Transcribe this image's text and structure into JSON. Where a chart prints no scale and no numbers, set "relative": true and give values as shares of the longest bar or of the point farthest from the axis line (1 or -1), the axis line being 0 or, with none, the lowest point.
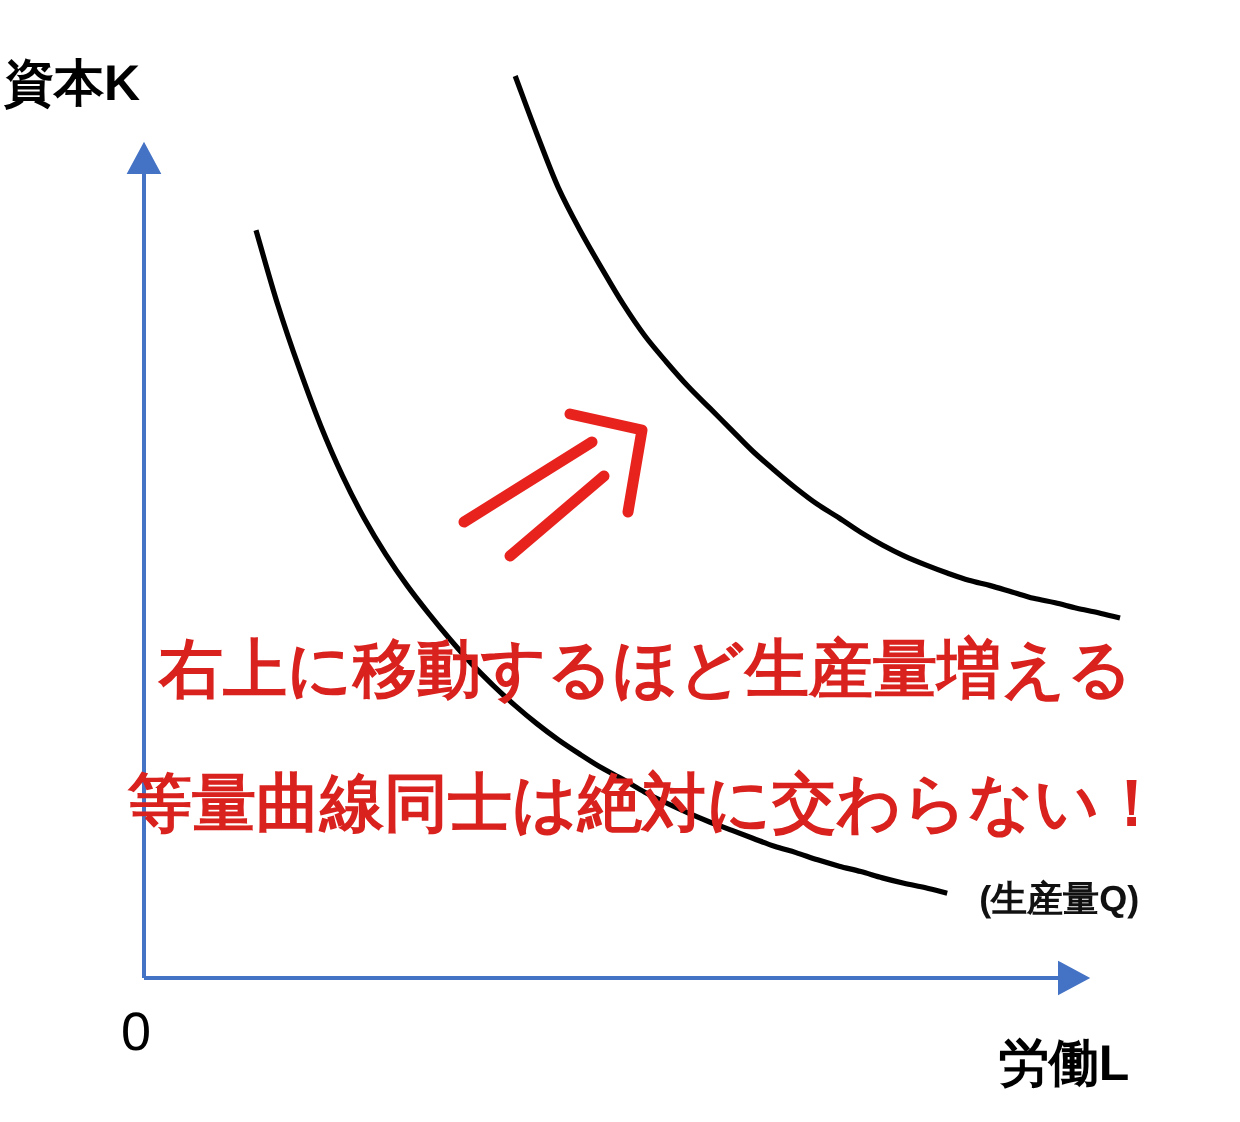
{
  "chart_data": {
    "type": "line",
    "relative": true,
    "xlabel": "労働L",
    "ylabel": "資本K",
    "line_style": "solid",
    "categories": [
      null,
      null,
      null,
      null,
      null,
      null,
      null,
      null,
      null,
      null,
      null,
      null,
      null,
      null,
      null,
      null,
      null,
      null,
      null,
      null,
      null,
      null,
      null,
      null,
      null,
      null,
      null,
      null,
      null,
      null,
      null,
      null,
      null,
      null,
      null,
      null,
      null,
      null,
      null,
      null,
      null
    ],
    "series": [
      {
        "name": "(生産量Q)",
        "color": "#000000",
        "values": [
          0.829,
          0.747,
          0.676,
          0.612,
          0.557,
          0.51,
          0.47,
          0.435,
          0.404,
          0.375,
          0.348,
          0.324,
          0.302,
          0.282,
          0.264,
          0.248,
          0.233,
          0.22,
          0.206,
          0.194,
          0.183,
          0.173,
          0.164,
          0.155,
          0.146,
          0.139,
          0.131,
          0.124,
          0.118,
          0.111,
          0.105,
          0.1,
          0.094,
          null,
          null,
          null,
          null,
          null,
          null,
          null,
          null
        ]
      },
      {
        "color": "#000000",
        "values": [
          null,
          null,
          null,
          null,
          null,
          null,
          null,
          null,
          null,
          null,
          null,
          null,
          1.0,
          0.936,
          0.876,
          0.829,
          0.787,
          0.747,
          0.712,
          0.683,
          0.656,
          0.632,
          0.608,
          0.584,
          0.563,
          0.543,
          0.525,
          0.51,
          0.494,
          0.48,
          0.468,
          0.458,
          0.449,
          0.441,
          0.435,
          0.428,
          0.421,
          0.416,
          0.41,
          0.405,
          0.399
        ]
      }
    ],
    "annotations": [
      "0",
      "右上に移動するほど生産量増える",
      "等量曲線同士は絶対に交わらない！"
    ]
  }
}
